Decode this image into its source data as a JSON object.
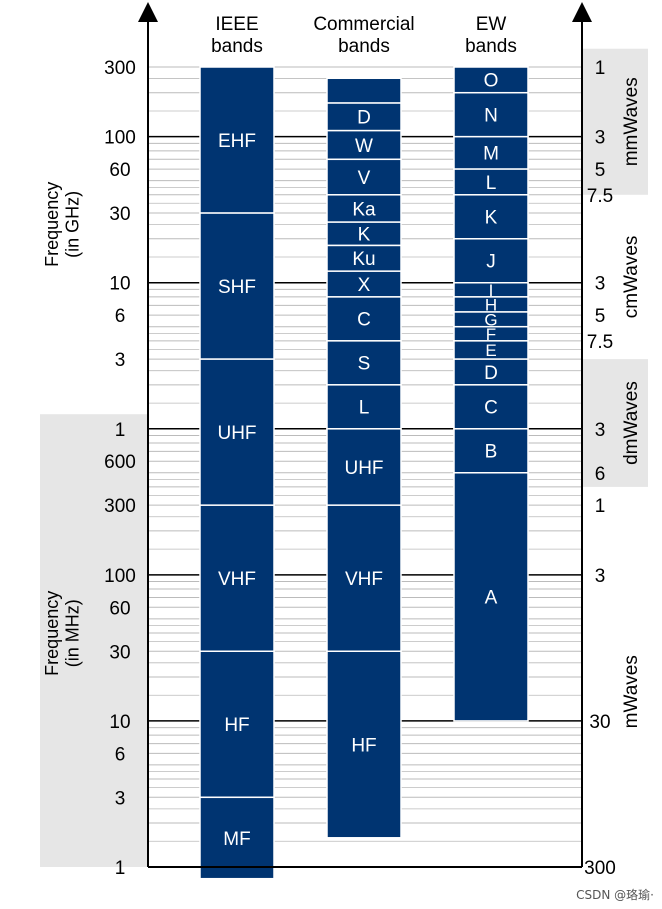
{
  "columns": {
    "ieee": "IEEE\nbands",
    "commercial": "Commercial\nbands",
    "ew": "EW\nbands"
  },
  "axis_titles": {
    "ghz": "Frequency\n(in GHz)",
    "mhz": "Frequency\n(in MHz)"
  },
  "left_ticks": [
    {
      "label": "300",
      "log_mhz": 5.4771
    },
    {
      "label": "100",
      "log_mhz": 5.0
    },
    {
      "label": "60",
      "log_mhz": 4.7782
    },
    {
      "label": "30",
      "log_mhz": 4.4771
    },
    {
      "label": "10",
      "log_mhz": 4.0
    },
    {
      "label": "6",
      "log_mhz": 3.7782
    },
    {
      "label": "3",
      "log_mhz": 3.4771
    },
    {
      "label": "1",
      "log_mhz": 3.0
    },
    {
      "label": "600",
      "log_mhz": 2.7782
    },
    {
      "label": "300",
      "log_mhz": 2.4771
    },
    {
      "label": "100",
      "log_mhz": 2.0
    },
    {
      "label": "60",
      "log_mhz": 1.7782
    },
    {
      "label": "30",
      "log_mhz": 1.4771
    },
    {
      "label": "10",
      "log_mhz": 1.0
    },
    {
      "label": "6",
      "log_mhz": 0.7782
    },
    {
      "label": "3",
      "log_mhz": 0.4771
    },
    {
      "label": "1",
      "log_mhz": 0.0
    }
  ],
  "right_ticks": [
    {
      "label": "1",
      "log_mhz": 5.4771
    },
    {
      "label": "3",
      "log_mhz": 5.0
    },
    {
      "label": "5",
      "log_mhz": 4.7782
    },
    {
      "label": "7.5",
      "log_mhz": 4.6021
    },
    {
      "label": "3",
      "log_mhz": 4.0
    },
    {
      "label": "5",
      "log_mhz": 3.7782
    },
    {
      "label": "7.5",
      "log_mhz": 3.6021
    },
    {
      "label": "3",
      "log_mhz": 3.0
    },
    {
      "label": "6",
      "log_mhz": 2.699
    },
    {
      "label": "1",
      "log_mhz": 2.4771
    },
    {
      "label": "3",
      "log_mhz": 2.0
    },
    {
      "label": "30",
      "log_mhz": 1.0
    },
    {
      "label": "300",
      "log_mhz": 0.0
    }
  ],
  "wavelength_groups": [
    {
      "label": "mmWaves",
      "top_log": 5.6021,
      "bottom_log": 4.6021,
      "shaded": true
    },
    {
      "label": "cmWaves",
      "top_log": 4.6021,
      "bottom_log": 3.4771,
      "shaded": false
    },
    {
      "label": "dmWaves",
      "top_log": 3.4771,
      "bottom_log": 2.6021,
      "shaded": true
    },
    {
      "label": "mWaves",
      "top_log": 2.6021,
      "bottom_log": -0.1,
      "shaded": false
    }
  ],
  "ieee_bands": [
    {
      "label": "EHF",
      "top": 5.4771,
      "bottom": 4.4771
    },
    {
      "label": "SHF",
      "top": 4.4771,
      "bottom": 3.4771
    },
    {
      "label": "UHF",
      "top": 3.4771,
      "bottom": 2.4771
    },
    {
      "label": "VHF",
      "top": 2.4771,
      "bottom": 1.4771
    },
    {
      "label": "HF",
      "top": 1.4771,
      "bottom": 0.4771
    },
    {
      "label": "MF",
      "top": 0.4771,
      "bottom": -0.08
    }
  ],
  "commercial_bands": [
    {
      "label": "",
      "top": 5.4,
      "bottom": 5.2304
    },
    {
      "label": "D",
      "top": 5.2304,
      "bottom": 5.0414
    },
    {
      "label": "W",
      "top": 5.0414,
      "bottom": 4.8451
    },
    {
      "label": "V",
      "top": 4.8451,
      "bottom": 4.6021
    },
    {
      "label": "Ka",
      "top": 4.6021,
      "bottom": 4.415
    },
    {
      "label": "K",
      "top": 4.415,
      "bottom": 4.2553
    },
    {
      "label": "Ku",
      "top": 4.2553,
      "bottom": 4.0792
    },
    {
      "label": "X",
      "top": 4.0792,
      "bottom": 3.9031
    },
    {
      "label": "C",
      "top": 3.9031,
      "bottom": 3.6021
    },
    {
      "label": "S",
      "top": 3.6021,
      "bottom": 3.301
    },
    {
      "label": "L",
      "top": 3.301,
      "bottom": 3.0
    },
    {
      "label": "UHF",
      "top": 3.0,
      "bottom": 2.4771
    },
    {
      "label": "VHF",
      "top": 2.4771,
      "bottom": 1.4771
    },
    {
      "label": "HF",
      "top": 1.4771,
      "bottom": 0.2
    }
  ],
  "ew_bands": [
    {
      "label": "O",
      "top": 5.4771,
      "bottom": 5.301
    },
    {
      "label": "N",
      "top": 5.301,
      "bottom": 5.0
    },
    {
      "label": "M",
      "top": 5.0,
      "bottom": 4.7782
    },
    {
      "label": "L",
      "top": 4.7782,
      "bottom": 4.6021
    },
    {
      "label": "K",
      "top": 4.6021,
      "bottom": 4.301
    },
    {
      "label": "J",
      "top": 4.301,
      "bottom": 4.0
    },
    {
      "label": "I",
      "top": 4.0,
      "bottom": 3.9031
    },
    {
      "label": "H",
      "top": 3.9031,
      "bottom": 3.8
    },
    {
      "label": "G",
      "top": 3.8,
      "bottom": 3.699
    },
    {
      "label": "F",
      "top": 3.699,
      "bottom": 3.6021
    },
    {
      "label": "E",
      "top": 3.6021,
      "bottom": 3.4771
    },
    {
      "label": "D",
      "top": 3.4771,
      "bottom": 3.301
    },
    {
      "label": "C",
      "top": 3.301,
      "bottom": 3.0
    },
    {
      "label": "B",
      "top": 3.0,
      "bottom": 2.699
    },
    {
      "label": "A",
      "top": 2.699,
      "bottom": 1.0
    }
  ],
  "mhz_region_top_log": 3.1,
  "watermark": "CSDN @珞瑜·",
  "colors": {
    "band": "#003471",
    "band_text": "#ffffff",
    "shade": "#e6e6e6",
    "grid_minor": "#bbbbbb",
    "grid_major": "#000000",
    "text": "#000000"
  }
}
